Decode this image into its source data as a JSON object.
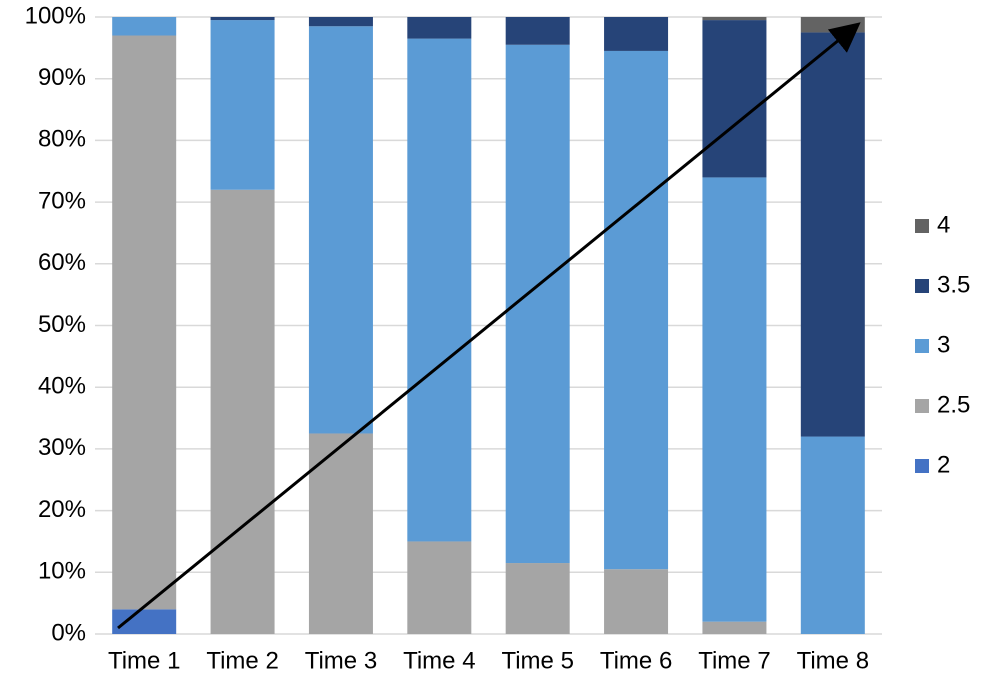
{
  "chart_data": {
    "type": "bar",
    "stacked": true,
    "categories": [
      "Time 1",
      "Time 2",
      "Time 3",
      "Time 4",
      "Time 5",
      "Time 6",
      "Time 7",
      "Time 8"
    ],
    "series": [
      {
        "name": "2",
        "color": "#4472c4",
        "values": [
          4,
          0,
          0,
          0,
          0,
          0,
          0,
          0
        ]
      },
      {
        "name": "2.5",
        "color": "#a5a5a5",
        "values": [
          93,
          72,
          32.5,
          15,
          11.5,
          10.5,
          2,
          0
        ]
      },
      {
        "name": "3",
        "color": "#5b9bd5",
        "values": [
          3,
          27.5,
          66,
          81.5,
          84,
          84,
          72,
          32
        ]
      },
      {
        "name": "3.5",
        "color": "#264478",
        "values": [
          0,
          0.5,
          1.5,
          3.5,
          4.5,
          5.5,
          25.5,
          65.5
        ]
      },
      {
        "name": "4",
        "color": "#636363",
        "values": [
          0,
          0,
          0,
          0,
          0,
          0,
          0.5,
          2.5
        ]
      }
    ],
    "ylim": [
      0,
      100
    ],
    "yticks": [
      {
        "value": 0,
        "label": "0%"
      },
      {
        "value": 10,
        "label": "10%"
      },
      {
        "value": 20,
        "label": "20%"
      },
      {
        "value": 30,
        "label": "30%"
      },
      {
        "value": 40,
        "label": "40%"
      },
      {
        "value": 50,
        "label": "50%"
      },
      {
        "value": 60,
        "label": "60%"
      },
      {
        "value": 70,
        "label": "70%"
      },
      {
        "value": 80,
        "label": "80%"
      },
      {
        "value": 90,
        "label": "90%"
      },
      {
        "value": 100,
        "label": "100%"
      }
    ],
    "grid": true,
    "legend": "right"
  }
}
